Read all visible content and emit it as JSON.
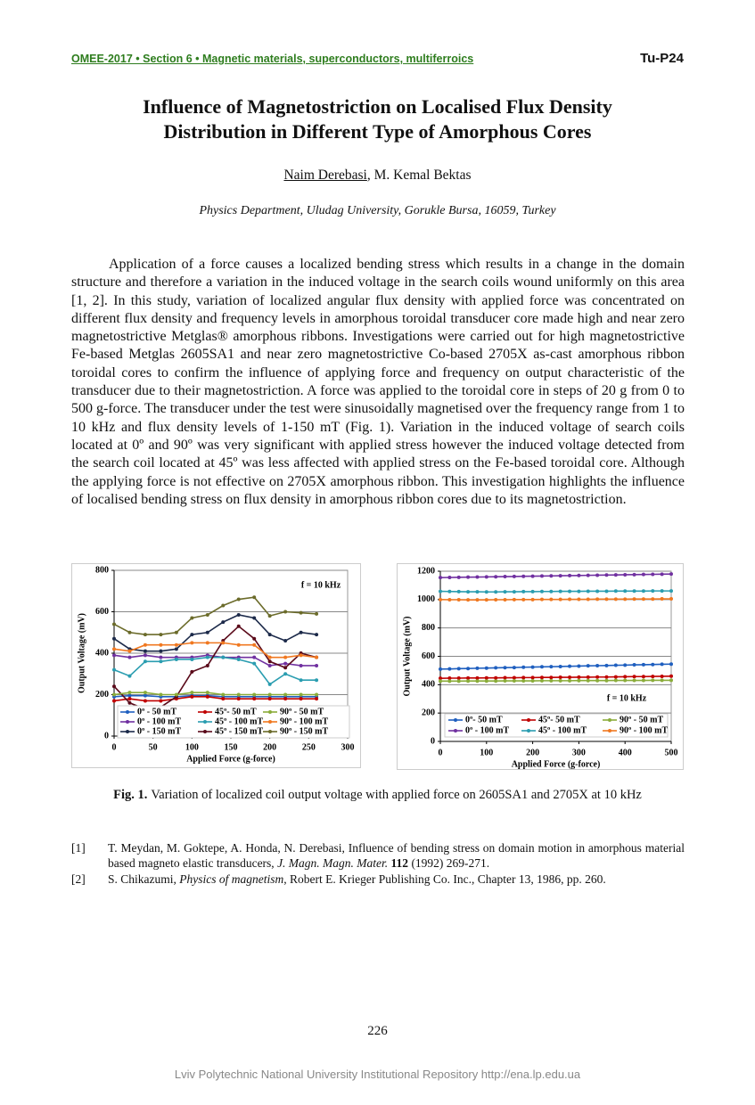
{
  "header": {
    "conference": "OMEE-2017 • Section 6 • Magnetic materials, superconductors, multiferroics",
    "code": "Tu-P24"
  },
  "title": "Influence of Magnetostriction on Localised Flux Density Distribution in Different Type of Amorphous Cores",
  "authors": [
    "Naim Derebasi",
    "M. Kemal Bektas"
  ],
  "author_separator": ", ",
  "affiliation": "Physics Department, Uludag University, Gorukle Bursa, 16059, Turkey",
  "abstract": "Application of a force causes a localized bending stress which results in a change in the domain structure and therefore a variation in the induced voltage in the search coils wound uniformly on this area [1, 2]. In this study, variation of localized angular flux density with applied force was concentrated on different flux density and frequency levels in amorphous toroidal transducer core made high and near zero magnetostrictive Metglas® amorphous ribbons. Investigations were carried out for high magnetostrictive Fe-based Metglas 2605SA1 and near zero magnetostrictive Co-based 2705X as-cast amorphous ribbon toroidal cores to confirm the influence of applying force and frequency on output characteristic of the transducer due to their magnetostriction. A force was applied to the toroidal core in steps of 20 g from 0 to 500 g-force. The transducer under the test were sinusoidally magnetised over the frequency range from 1 to 10 kHz and flux density levels of 1-150 mT (Fig. 1). Variation in the induced voltage of search coils located at 0º and 90º was very significant with applied stress however the induced voltage detected from the search coil located at 45º was less affected with applied stress on the Fe-based toroidal core. Although the applying force is not effective on 2705X amorphous ribbon. This investigation highlights the influence of localised bending stress on flux density in amorphous ribbon cores due to its magnetostriction.",
  "chart_data": [
    {
      "type": "line",
      "annotation": "f = 10 kHz",
      "xlabel": "Applied Force (g-force)",
      "ylabel": "Output Voltage (mV)",
      "xlim": [
        0,
        300
      ],
      "xticks": [
        0,
        50,
        100,
        150,
        200,
        250,
        300
      ],
      "ylim": [
        0,
        800
      ],
      "yticks": [
        0,
        200,
        400,
        600,
        800
      ],
      "grid": true,
      "legend": "bottom",
      "x": [
        0,
        20,
        40,
        60,
        80,
        100,
        120,
        140,
        160,
        180,
        200,
        220,
        240,
        260
      ],
      "series": [
        {
          "name": "0º - 50 mT",
          "color": "#1f5fbf",
          "values": [
            190,
            195,
            195,
            190,
            190,
            195,
            195,
            190,
            190,
            190,
            190,
            190,
            190,
            190
          ]
        },
        {
          "name": "0º - 100 mT",
          "color": "#7030a0",
          "values": [
            390,
            380,
            390,
            380,
            380,
            380,
            390,
            380,
            380,
            380,
            340,
            350,
            340,
            340
          ]
        },
        {
          "name": "0º - 150 mT",
          "color": "#1c2a4a",
          "values": [
            470,
            420,
            410,
            410,
            420,
            490,
            500,
            550,
            585,
            570,
            490,
            460,
            500,
            490
          ]
        },
        {
          "name": "45º- 50 mT",
          "color": "#c00000",
          "values": [
            170,
            180,
            170,
            170,
            180,
            190,
            190,
            180,
            180,
            180,
            180,
            180,
            180,
            180
          ]
        },
        {
          "name": "45º - 100 mT",
          "color": "#2a9db0",
          "values": [
            320,
            290,
            360,
            360,
            370,
            370,
            380,
            380,
            370,
            350,
            250,
            300,
            270,
            270
          ]
        },
        {
          "name": "45º - 150 mT",
          "color": "#5a0a1a",
          "values": [
            240,
            160,
            130,
            140,
            190,
            310,
            340,
            460,
            530,
            470,
            360,
            330,
            400,
            380
          ]
        },
        {
          "name": "90º - 50 mT",
          "color": "#8aac3a",
          "values": [
            200,
            210,
            210,
            200,
            200,
            210,
            210,
            200,
            200,
            200,
            200,
            200,
            200,
            200
          ]
        },
        {
          "name": "90º - 100 mT",
          "color": "#f07820",
          "values": [
            420,
            410,
            440,
            440,
            440,
            450,
            450,
            450,
            440,
            440,
            380,
            380,
            390,
            380
          ]
        },
        {
          "name": "90º - 150 mT",
          "color": "#6b6b2a",
          "values": [
            540,
            500,
            490,
            490,
            500,
            570,
            585,
            630,
            660,
            670,
            580,
            600,
            595,
            590
          ]
        }
      ]
    },
    {
      "type": "line",
      "annotation": "f = 10 kHz",
      "xlabel": "Applied Force (g-force)",
      "ylabel": "Output Voltage (mV)",
      "xlim": [
        0,
        500
      ],
      "xticks": [
        0,
        100,
        200,
        300,
        400,
        500
      ],
      "ylim": [
        0,
        1200
      ],
      "yticks": [
        0,
        200,
        400,
        600,
        800,
        1000,
        1200
      ],
      "grid": true,
      "legend": "bottom",
      "x": [
        0,
        20,
        40,
        60,
        80,
        100,
        120,
        140,
        160,
        180,
        200,
        220,
        240,
        260,
        280,
        300,
        320,
        340,
        360,
        380,
        400,
        420,
        440,
        460,
        480,
        500
      ],
      "series": [
        {
          "name": "0º- 50 mT",
          "color": "#1f5fbf",
          "values": [
            510,
            511,
            513,
            514,
            516,
            517,
            519,
            520,
            521,
            523,
            524,
            526,
            527,
            528,
            530,
            531,
            533,
            534,
            535,
            537,
            538,
            540,
            541,
            542,
            544,
            545
          ]
        },
        {
          "name": "0º - 100 mT",
          "color": "#7030a0",
          "values": [
            1155,
            1156,
            1157,
            1158,
            1159,
            1160,
            1161,
            1162,
            1163,
            1164,
            1165,
            1166,
            1167,
            1168,
            1169,
            1170,
            1171,
            1172,
            1173,
            1174,
            1175,
            1176,
            1177,
            1178,
            1179,
            1180
          ]
        },
        {
          "name": "45º- 50 mT",
          "color": "#c00000",
          "values": [
            445,
            446,
            446,
            447,
            447,
            448,
            448,
            449,
            449,
            450,
            450,
            451,
            451,
            452,
            452,
            453,
            453,
            454,
            454,
            455,
            456,
            457,
            457,
            458,
            459,
            460
          ]
        },
        {
          "name": "45º - 100 mT",
          "color": "#2a9db0",
          "values": [
            1058,
            1057,
            1056,
            1055,
            1055,
            1054,
            1054,
            1055,
            1055,
            1056,
            1056,
            1057,
            1057,
            1058,
            1058,
            1058,
            1059,
            1059,
            1059,
            1060,
            1060,
            1060,
            1060,
            1061,
            1061,
            1061
          ]
        },
        {
          "name": "90º - 50 mT",
          "color": "#8aac3a",
          "values": [
            425,
            425,
            425,
            426,
            426,
            426,
            426,
            427,
            427,
            427,
            427,
            428,
            428,
            428,
            428,
            429,
            429,
            429,
            429,
            430,
            430,
            430,
            430,
            431,
            431,
            431
          ]
        },
        {
          "name": "90º - 100 mT",
          "color": "#f07820",
          "values": [
            1000,
            999,
            999,
            998,
            998,
            998,
            999,
            999,
            1000,
            1000,
            1000,
            1001,
            1001,
            1001,
            1002,
            1002,
            1002,
            1003,
            1003,
            1003,
            1003,
            1004,
            1004,
            1004,
            1005,
            1005
          ]
        }
      ]
    }
  ],
  "caption": {
    "label": "Fig. 1.",
    "text": "Variation of localized coil output voltage with applied force on 2605SA1 and 2705X at 10 kHz"
  },
  "references": [
    {
      "label": "[1]",
      "parts": [
        {
          "text": "T. Meydan, M. Goktepe, A. Honda, N. Derebasi, Influence of bending stress on domain motion in amorphous material based magneto elastic transducers, "
        },
        {
          "text": "J. Magn. Magn. Mater. ",
          "style": "italic"
        },
        {
          "text": "112",
          "style": "bold"
        },
        {
          "text": " (1992) 269-271."
        }
      ]
    },
    {
      "label": "[2]",
      "parts": [
        {
          "text": "S. Chikazumi, "
        },
        {
          "text": "Physics of magnetism",
          "style": "italic"
        },
        {
          "text": ", Robert E. Krieger Publishing Co. Inc., Chapter 13, 1986, pp. 260."
        }
      ]
    }
  ],
  "page_number": "226",
  "footer": "Lviv Polytechnic National University Institutional Repository http://ena.lp.edu.ua"
}
